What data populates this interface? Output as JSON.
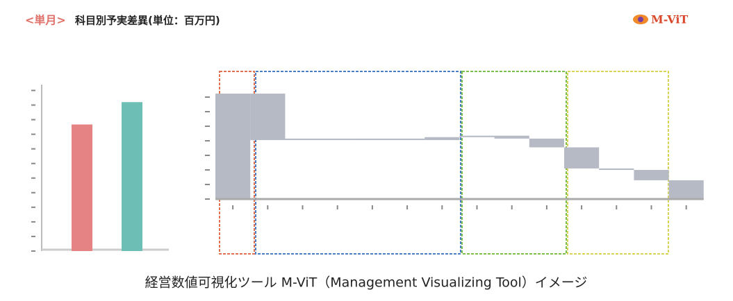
{
  "header": {
    "tag": "<単月>",
    "title": "科目別予実差異(単位：百万円)",
    "logo": "M-ViT"
  },
  "caption": "経営数値可視化ツール M-ViT（Management Visualizing Tool）イメージ",
  "chart_data": [
    {
      "type": "bar",
      "categories": [
        null,
        null
      ],
      "values": [
        8.67,
        10.2
      ],
      "colors": [
        "#e58284",
        "#6dbfb5"
      ],
      "ylim": [
        0,
        11.4
      ],
      "yticks": [
        0,
        1,
        2,
        3,
        4,
        5,
        6,
        7,
        8,
        9,
        10,
        11
      ]
    },
    {
      "type": "waterfall",
      "categories": [
        null,
        null,
        null,
        null,
        null,
        null,
        null,
        null,
        null,
        null,
        null,
        null,
        null,
        null
      ],
      "values": [
        7.24,
        -3.19,
        0.1,
        -0.1,
        0.1,
        -0.1,
        0.2,
        0.1,
        -0.2,
        -0.6,
        -1.45,
        -0.1,
        -0.71,
        1.29
      ],
      "measure": [
        "absolute",
        "relative",
        "relative",
        "relative",
        "relative",
        "relative",
        "relative",
        "relative",
        "relative",
        "relative",
        "relative",
        "relative",
        "relative",
        "total"
      ],
      "color": "#b5bac5",
      "ylim": [
        0,
        7.2
      ],
      "yticks": [
        0,
        1,
        2,
        3,
        4,
        5,
        6,
        7
      ]
    }
  ]
}
